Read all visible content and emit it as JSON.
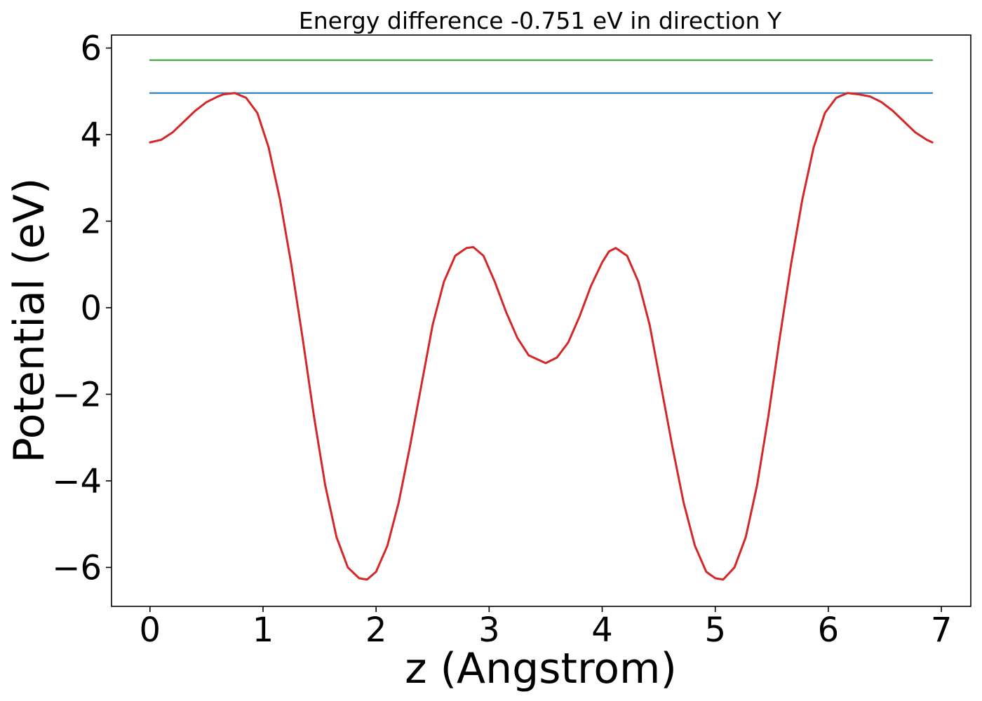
{
  "chart_data": {
    "type": "line",
    "title": "Energy difference -0.751 eV in direction Y",
    "xlabel": "z (Angstrom)",
    "ylabel": "Potential (eV)",
    "xlim": [
      -0.34,
      7.26
    ],
    "ylim": [
      -6.9,
      6.3
    ],
    "grid": false,
    "legend": "none",
    "xticks": [
      0,
      1,
      2,
      3,
      4,
      5,
      6,
      7
    ],
    "xtick_labels": [
      "0",
      "1",
      "2",
      "3",
      "4",
      "5",
      "6",
      "7"
    ],
    "yticks": [
      -6,
      -4,
      -2,
      0,
      2,
      4,
      6
    ],
    "ytick_labels": [
      "−6",
      "−4",
      "−2",
      "0",
      "2",
      "4",
      "6"
    ],
    "series": [
      {
        "color": "#2ca02c",
        "stroke_width": 2,
        "x": [
          0,
          6.92
        ],
        "y": [
          5.72,
          5.72
        ]
      },
      {
        "color": "#1f77b4",
        "stroke_width": 2,
        "x": [
          0,
          6.92
        ],
        "y": [
          4.96,
          4.96
        ]
      },
      {
        "color": "#d62728",
        "stroke_width": 3,
        "x": [
          0,
          0.1,
          0.2,
          0.3,
          0.4,
          0.5,
          0.6,
          0.65,
          0.75,
          0.85,
          0.95,
          1.05,
          1.15,
          1.25,
          1.35,
          1.45,
          1.55,
          1.65,
          1.75,
          1.85,
          1.92,
          2.0,
          2.1,
          2.2,
          2.3,
          2.4,
          2.5,
          2.6,
          2.7,
          2.8,
          2.86,
          2.95,
          3.05,
          3.15,
          3.25,
          3.35,
          3.5,
          3.6,
          3.7,
          3.8,
          3.9,
          4.0,
          4.06,
          4.12,
          4.22,
          4.32,
          4.42,
          4.52,
          4.62,
          4.72,
          4.82,
          4.92,
          5.0,
          5.07,
          5.17,
          5.27,
          5.37,
          5.47,
          5.57,
          5.67,
          5.77,
          5.87,
          5.97,
          6.07,
          6.17,
          6.27,
          6.37,
          6.47,
          6.57,
          6.67,
          6.77,
          6.87,
          6.92
        ],
        "y": [
          3.82,
          3.88,
          4.05,
          4.3,
          4.55,
          4.75,
          4.88,
          4.93,
          4.96,
          4.85,
          4.5,
          3.7,
          2.5,
          1.0,
          -0.7,
          -2.5,
          -4.1,
          -5.3,
          -6.0,
          -6.25,
          -6.28,
          -6.1,
          -5.5,
          -4.5,
          -3.2,
          -1.8,
          -0.4,
          0.6,
          1.2,
          1.38,
          1.4,
          1.2,
          0.6,
          -0.1,
          -0.7,
          -1.1,
          -1.28,
          -1.15,
          -0.8,
          -0.2,
          0.5,
          1.05,
          1.3,
          1.38,
          1.2,
          0.6,
          -0.4,
          -1.8,
          -3.2,
          -4.5,
          -5.5,
          -6.1,
          -6.25,
          -6.28,
          -6.0,
          -5.3,
          -4.1,
          -2.5,
          -0.7,
          1.0,
          2.5,
          3.7,
          4.5,
          4.85,
          4.96,
          4.93,
          4.88,
          4.75,
          4.55,
          4.3,
          4.05,
          3.88,
          3.82
        ]
      }
    ]
  }
}
